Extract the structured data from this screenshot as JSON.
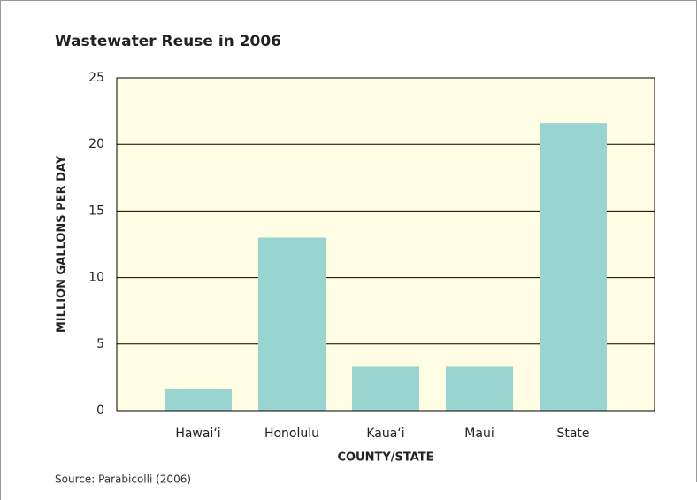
{
  "chart_data": {
    "type": "bar",
    "title": "Wastewater Reuse in 2006",
    "categories": [
      "Hawai‘i",
      "Honolulu",
      "Kaua‘i",
      "Maui",
      "State"
    ],
    "values": [
      1.6,
      13.0,
      3.3,
      3.3,
      21.6
    ],
    "color": "#98d4d0",
    "xlabel": "COUNTY/STATE",
    "ylabel": "MILLION GALLONS PER DAY",
    "ylim": [
      0,
      25
    ],
    "yticks": [
      0,
      5,
      10,
      15,
      20,
      25
    ],
    "grid": true,
    "source": "Source: Parabicolli (2006)"
  }
}
